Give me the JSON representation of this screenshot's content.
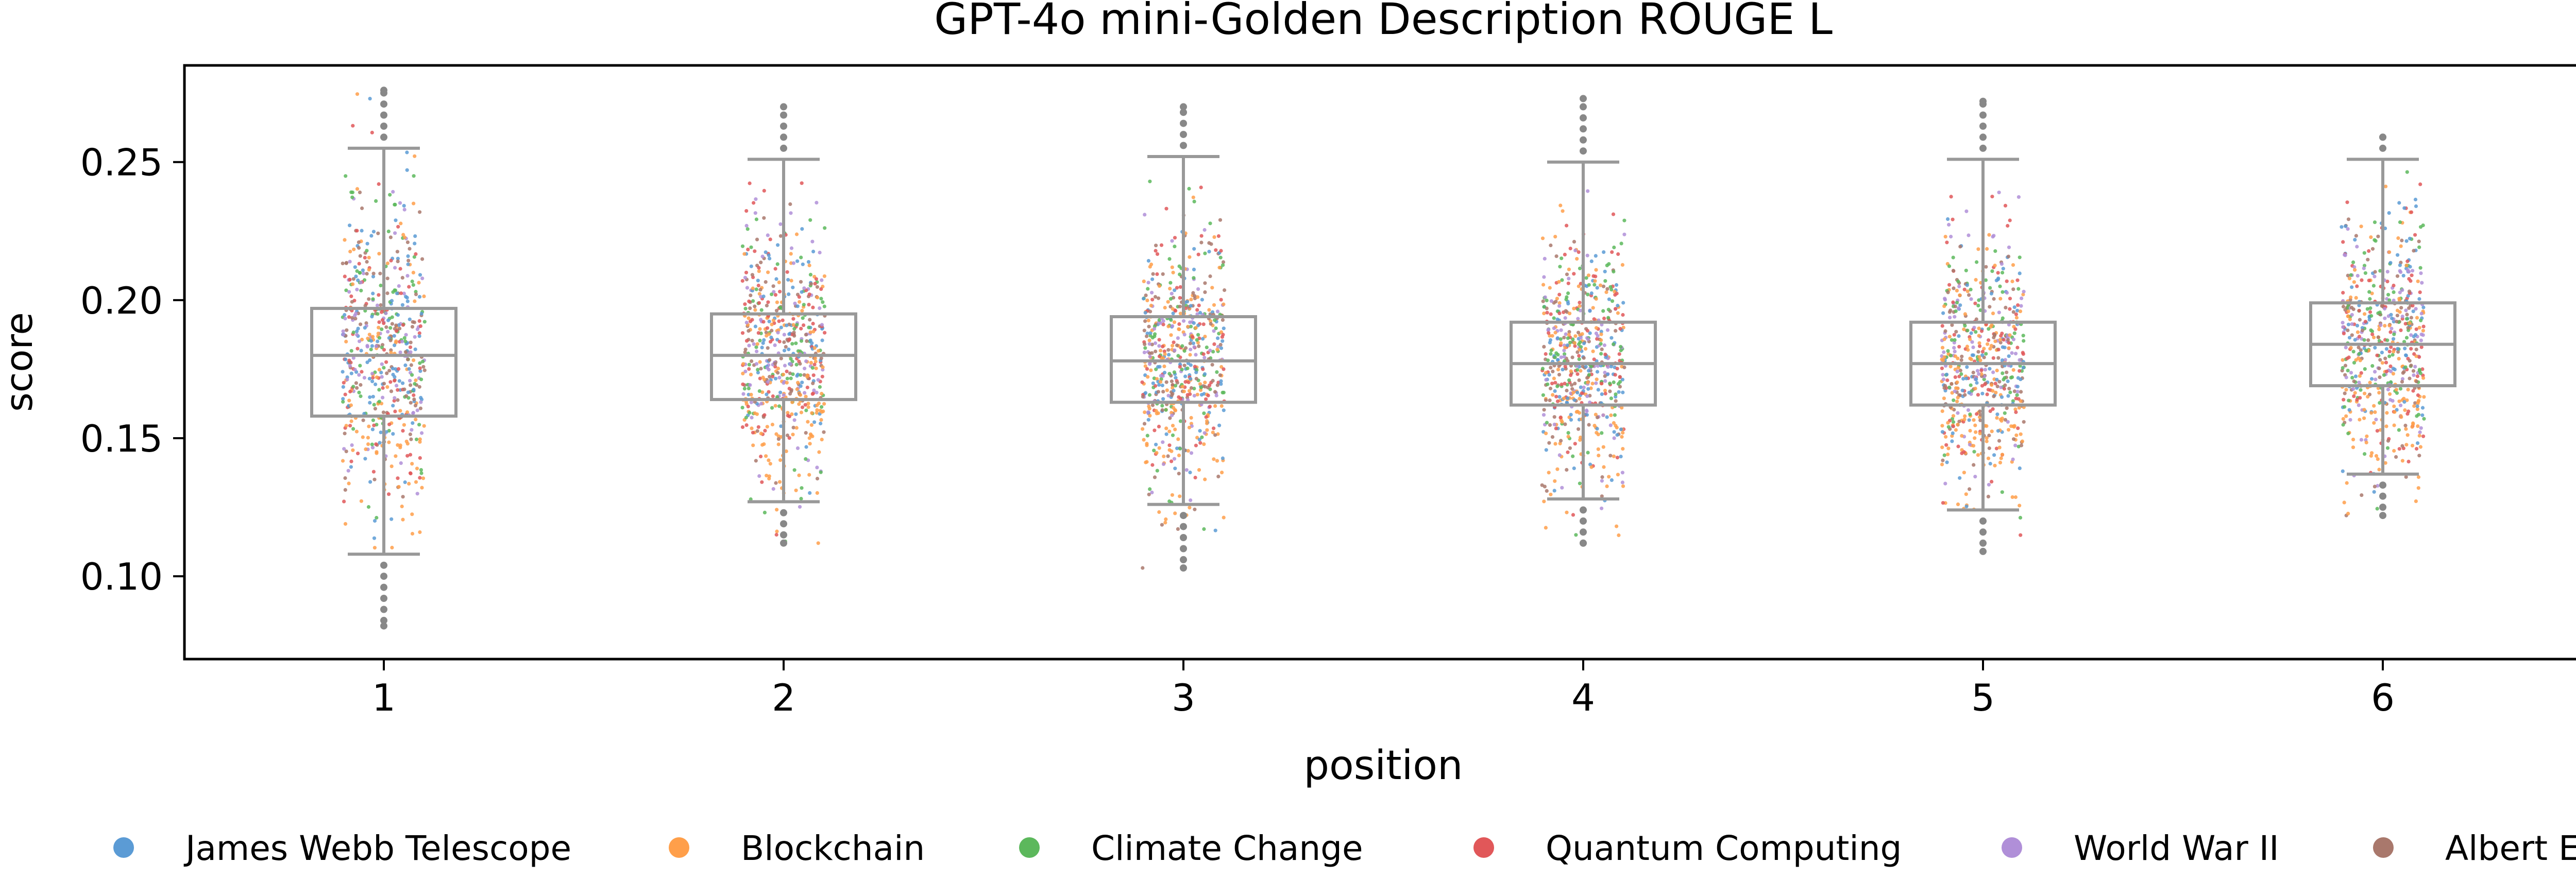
{
  "chart_data": {
    "type": "scatter",
    "subtype": "box-plot with jittered strip points",
    "title": "GPT-4o mini-Golden Description ROUGE L",
    "xlabel": "position",
    "ylabel": "score",
    "ylim": [
      0.07,
      0.285
    ],
    "yticks": [
      0.1,
      0.15,
      0.2,
      0.25
    ],
    "ytick_labels": [
      "0.10",
      "0.15",
      "0.20",
      "0.25"
    ],
    "categories": [
      "1",
      "2",
      "3",
      "4",
      "5",
      "6"
    ],
    "grid": false,
    "legend_position": "bottom",
    "series": [
      {
        "name": "James Webb Telescope",
        "color": "#5b9bd5"
      },
      {
        "name": "Blockchain",
        "color": "#ff9f4a"
      },
      {
        "name": "Climate Change",
        "color": "#5cb85c"
      },
      {
        "name": "Quantum Computing",
        "color": "#e15759"
      },
      {
        "name": "World War II",
        "color": "#b08fd8"
      },
      {
        "name": "Albert Einstein",
        "color": "#a9786c"
      }
    ],
    "boxes": [
      {
        "position": "1",
        "whisker_low": 0.108,
        "q1": 0.158,
        "median": 0.18,
        "q3": 0.197,
        "whisker_high": 0.255,
        "point_low": 0.082,
        "point_high": 0.276
      },
      {
        "position": "2",
        "whisker_low": 0.127,
        "q1": 0.164,
        "median": 0.18,
        "q3": 0.195,
        "whisker_high": 0.251,
        "point_low": 0.112,
        "point_high": 0.27
      },
      {
        "position": "3",
        "whisker_low": 0.126,
        "q1": 0.163,
        "median": 0.178,
        "q3": 0.194,
        "whisker_high": 0.252,
        "point_low": 0.103,
        "point_high": 0.27
      },
      {
        "position": "4",
        "whisker_low": 0.128,
        "q1": 0.162,
        "median": 0.177,
        "q3": 0.192,
        "whisker_high": 0.25,
        "point_low": 0.112,
        "point_high": 0.273
      },
      {
        "position": "5",
        "whisker_low": 0.124,
        "q1": 0.162,
        "median": 0.177,
        "q3": 0.192,
        "whisker_high": 0.251,
        "point_low": 0.109,
        "point_high": 0.272
      },
      {
        "position": "6",
        "whisker_low": 0.137,
        "q1": 0.169,
        "median": 0.184,
        "q3": 0.199,
        "whisker_high": 0.251,
        "point_low": 0.122,
        "point_high": 0.259
      }
    ],
    "colors": {
      "box": "#999999",
      "outlier": "#888888",
      "axes": "#000000"
    }
  }
}
